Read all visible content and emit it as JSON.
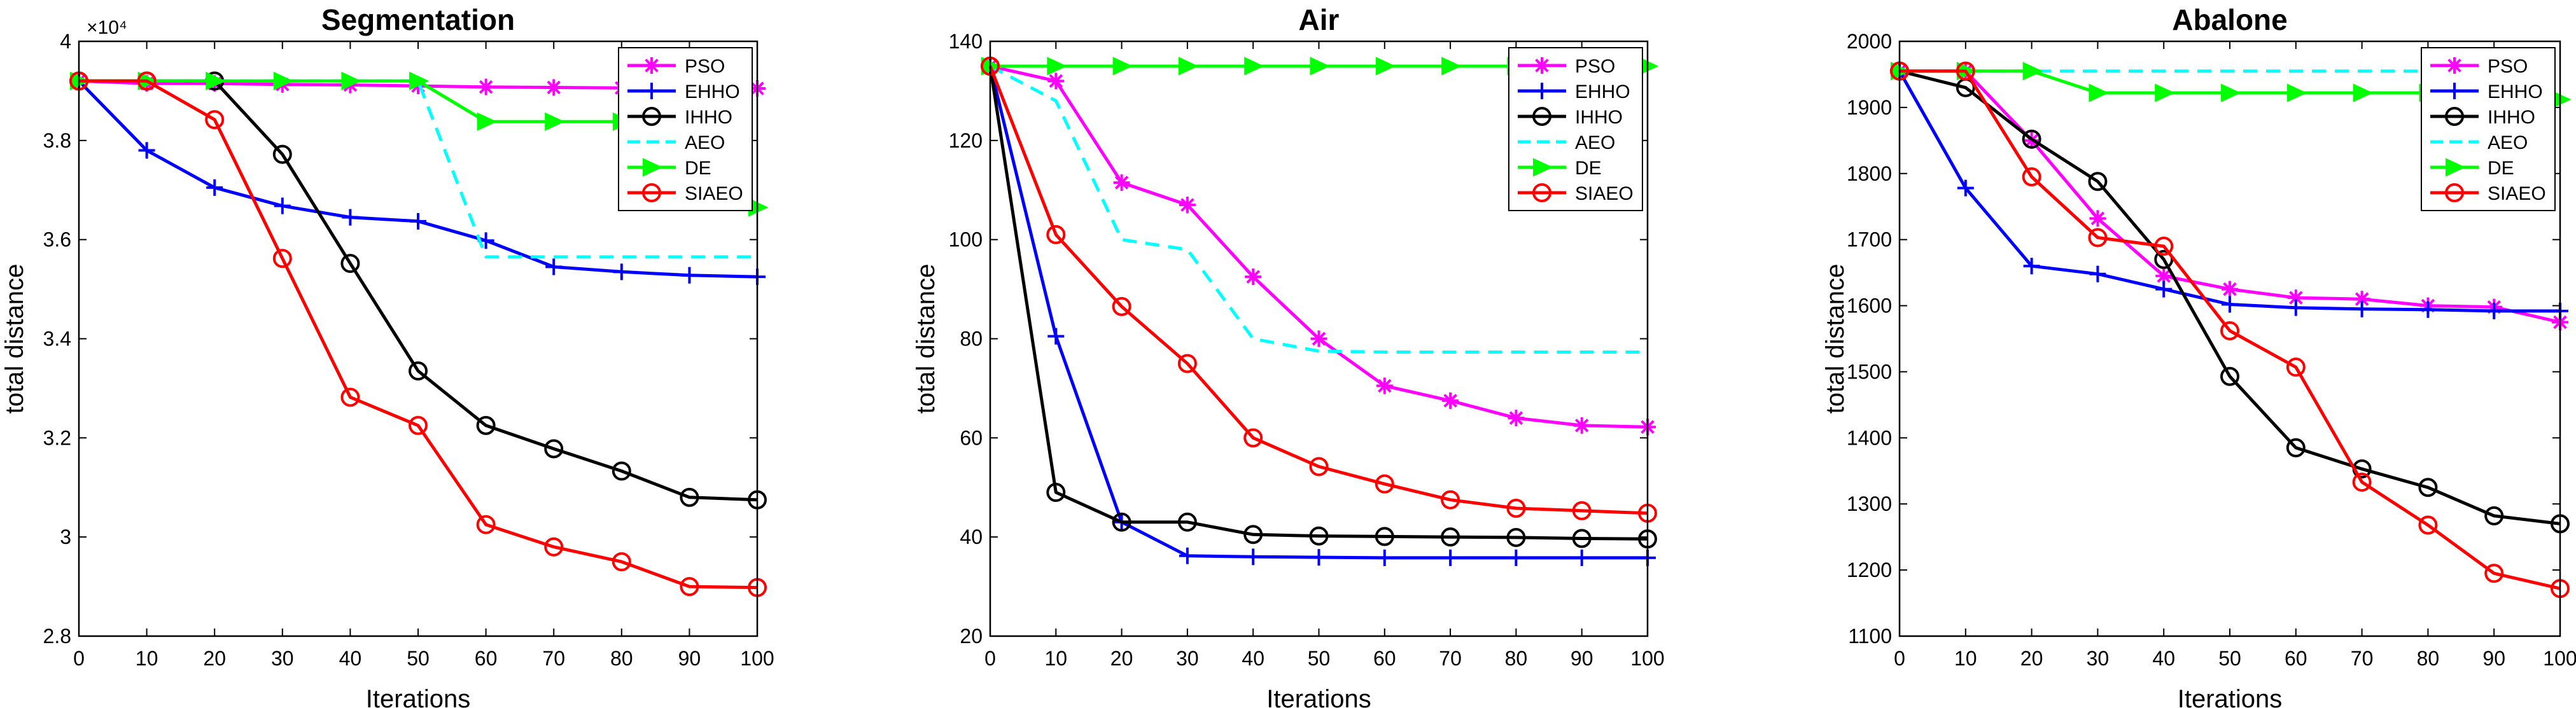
{
  "figure": {
    "panels": [
      {
        "title": "Segmentation",
        "xlabel": "Iterations",
        "ylabel": "total distance",
        "exponent_label": "×10⁴",
        "xlim": [
          0,
          100
        ],
        "ylim": [
          2.8,
          4.0
        ],
        "xticks": [
          0,
          10,
          20,
          30,
          40,
          50,
          60,
          70,
          80,
          90,
          100
        ],
        "yticks": [
          2.8,
          3,
          3.2,
          3.4,
          3.6,
          3.8,
          4
        ],
        "ytick_labels": [
          "2.8",
          "3",
          "3.2",
          "3.4",
          "3.6",
          "3.8",
          "4"
        ],
        "legend_position": "top-right"
      },
      {
        "title": "Air",
        "xlabel": "Iterations",
        "ylabel": "total distance",
        "exponent_label": "",
        "xlim": [
          0,
          100
        ],
        "ylim": [
          20,
          140
        ],
        "xticks": [
          0,
          10,
          20,
          30,
          40,
          50,
          60,
          70,
          80,
          90,
          100
        ],
        "yticks": [
          20,
          40,
          60,
          80,
          100,
          120,
          140
        ],
        "ytick_labels": [
          "20",
          "40",
          "60",
          "80",
          "100",
          "120",
          "140"
        ],
        "legend_position": "top-right"
      },
      {
        "title": "Abalone",
        "xlabel": "Iterations",
        "ylabel": "total distance",
        "exponent_label": "",
        "xlim": [
          0,
          100
        ],
        "ylim": [
          1100,
          2000
        ],
        "xticks": [
          0,
          10,
          20,
          30,
          40,
          50,
          60,
          70,
          80,
          90,
          100
        ],
        "yticks": [
          1100,
          1200,
          1300,
          1400,
          1500,
          1600,
          1700,
          1800,
          1900,
          2000
        ],
        "ytick_labels": [
          "1100",
          "1200",
          "1300",
          "1400",
          "1500",
          "1600",
          "1700",
          "1800",
          "1900",
          "2000"
        ],
        "legend_position": "top-right"
      }
    ]
  },
  "chart_data": [
    {
      "type": "line",
      "title": "Segmentation",
      "xlabel": "Iterations",
      "ylabel": "total distance",
      "y_scale_note": "×10⁴",
      "xlim": [
        0,
        100
      ],
      "ylim": [
        2.8,
        4.0
      ],
      "grid": false,
      "legend": "top-right",
      "x": [
        0,
        10,
        20,
        30,
        40,
        50,
        60,
        70,
        80,
        90,
        100
      ],
      "series": [
        {
          "name": "PSO",
          "color": "#ff00ff",
          "marker": "asterisk",
          "dashed": false,
          "values": [
            3.92,
            3.915,
            3.915,
            3.913,
            3.912,
            3.91,
            3.908,
            3.907,
            3.906,
            3.906,
            3.905
          ]
        },
        {
          "name": "EHHO",
          "color": "#0000ff",
          "marker": "plus",
          "dashed": false,
          "values": [
            3.92,
            3.78,
            3.705,
            3.668,
            3.645,
            3.637,
            3.598,
            3.545,
            3.535,
            3.528,
            3.525
          ]
        },
        {
          "name": "IHHO",
          "color": "#000000",
          "marker": "circle",
          "dashed": false,
          "values": [
            3.92,
            3.92,
            3.92,
            3.772,
            3.552,
            3.335,
            3.225,
            3.178,
            3.133,
            3.08,
            3.075
          ]
        },
        {
          "name": "AEO",
          "color": "#00ffff",
          "marker": "none",
          "dashed": true,
          "values": [
            3.92,
            3.92,
            3.92,
            3.92,
            3.92,
            3.92,
            3.565,
            3.565,
            3.565,
            3.565,
            3.565
          ]
        },
        {
          "name": "DE",
          "color": "#00ff00",
          "marker": "triangle-right",
          "dashed": false,
          "values": [
            3.92,
            3.92,
            3.92,
            3.92,
            3.92,
            3.92,
            3.838,
            3.838,
            3.838,
            3.838,
            3.665
          ]
        },
        {
          "name": "SIAEO",
          "color": "#ff0000",
          "marker": "circle",
          "dashed": false,
          "values": [
            3.92,
            3.92,
            3.842,
            3.562,
            3.282,
            3.225,
            3.025,
            2.98,
            2.95,
            2.9,
            2.898
          ]
        }
      ]
    },
    {
      "type": "line",
      "title": "Air",
      "xlabel": "Iterations",
      "ylabel": "total distance",
      "xlim": [
        0,
        100
      ],
      "ylim": [
        20,
        140
      ],
      "grid": false,
      "legend": "top-right",
      "x": [
        0,
        10,
        20,
        30,
        40,
        50,
        60,
        70,
        80,
        90,
        100
      ],
      "series": [
        {
          "name": "PSO",
          "color": "#ff00ff",
          "marker": "asterisk",
          "dashed": false,
          "values": [
            135,
            132,
            111.5,
            107,
            92.5,
            80,
            70.5,
            67.5,
            64,
            62.5,
            62.2
          ]
        },
        {
          "name": "EHHO",
          "color": "#0000ff",
          "marker": "plus",
          "dashed": false,
          "values": [
            135,
            80.5,
            43,
            36.2,
            36,
            35.9,
            35.8,
            35.8,
            35.8,
            35.8,
            35.8
          ]
        },
        {
          "name": "IHHO",
          "color": "#000000",
          "marker": "circle",
          "dashed": false,
          "values": [
            135,
            49,
            43,
            43,
            40.5,
            40.2,
            40.1,
            40,
            39.9,
            39.7,
            39.6
          ]
        },
        {
          "name": "AEO",
          "color": "#00ffff",
          "marker": "none",
          "dashed": true,
          "values": [
            135,
            128,
            100,
            98,
            80,
            77.5,
            77.3,
            77.3,
            77.3,
            77.3,
            77.3
          ]
        },
        {
          "name": "DE",
          "color": "#00ff00",
          "marker": "triangle-right",
          "dashed": false,
          "values": [
            135,
            135,
            135,
            135,
            135,
            135,
            135,
            135,
            135,
            135,
            135
          ]
        },
        {
          "name": "SIAEO",
          "color": "#ff0000",
          "marker": "circle",
          "dashed": false,
          "values": [
            135,
            101,
            86.5,
            75,
            60,
            54.2,
            50.7,
            47.5,
            45.8,
            45.3,
            44.8
          ]
        }
      ]
    },
    {
      "type": "line",
      "title": "Abalone",
      "xlabel": "Iterations",
      "ylabel": "total distance",
      "xlim": [
        0,
        100
      ],
      "ylim": [
        1100,
        2000
      ],
      "grid": false,
      "legend": "top-right",
      "x": [
        0,
        10,
        20,
        30,
        40,
        50,
        60,
        70,
        80,
        90,
        100
      ],
      "series": [
        {
          "name": "PSO",
          "color": "#ff00ff",
          "marker": "asterisk",
          "dashed": false,
          "values": [
            1955,
            1955,
            1850,
            1732,
            1645,
            1625,
            1612,
            1610,
            1600,
            1598,
            1575
          ]
        },
        {
          "name": "EHHO",
          "color": "#0000ff",
          "marker": "plus",
          "dashed": false,
          "values": [
            1955,
            1778,
            1660,
            1648,
            1625,
            1602,
            1597,
            1595,
            1594,
            1592,
            1592
          ]
        },
        {
          "name": "IHHO",
          "color": "#000000",
          "marker": "circle",
          "dashed": false,
          "values": [
            1955,
            1930,
            1852,
            1788,
            1670,
            1493,
            1385,
            1353,
            1325,
            1282,
            1270
          ]
        },
        {
          "name": "AEO",
          "color": "#00ffff",
          "marker": "none",
          "dashed": true,
          "values": [
            1955,
            1955,
            1955,
            1955,
            1955,
            1955,
            1955,
            1955,
            1955,
            1955,
            1955
          ]
        },
        {
          "name": "DE",
          "color": "#00ff00",
          "marker": "triangle-right",
          "dashed": false,
          "values": [
            1955,
            1955,
            1955,
            1922,
            1922,
            1922,
            1922,
            1922,
            1922,
            1910,
            1912
          ]
        },
        {
          "name": "SIAEO",
          "color": "#ff0000",
          "marker": "circle",
          "dashed": false,
          "values": [
            1955,
            1955,
            1795,
            1703,
            1690,
            1562,
            1507,
            1333,
            1268,
            1195,
            1172
          ]
        }
      ]
    }
  ]
}
